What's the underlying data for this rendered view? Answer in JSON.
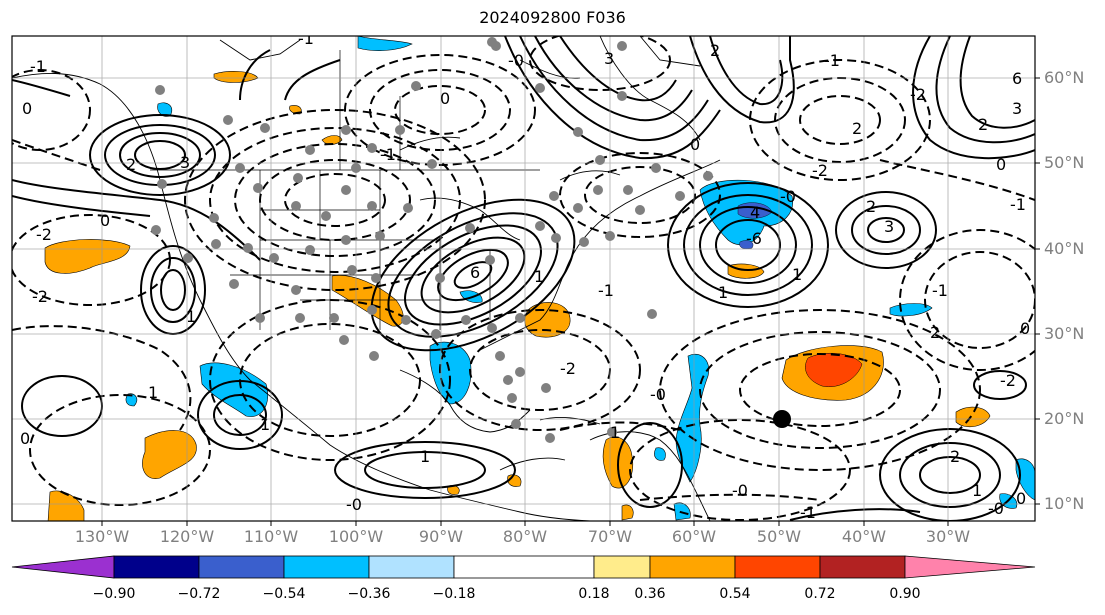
{
  "title": "2024092800 F036",
  "lat_labels": [
    "60°N",
    "50°N",
    "40°N",
    "30°N",
    "20°N",
    "10°N"
  ],
  "lon_labels": [
    "130°W",
    "120°W",
    "110°W",
    "100°W",
    "90°W",
    "80°W",
    "70°W",
    "60°W",
    "50°W",
    "40°W",
    "30°W"
  ],
  "colorbar": {
    "colors": [
      "#9b30d0",
      "#00008b",
      "#3a5fcd",
      "#00bfff",
      "#b0e2ff",
      "#ffffff",
      "#ffec8b",
      "#ffa500",
      "#ff4500",
      "#b22222",
      "#ff82ab"
    ],
    "tick_labels": [
      "−0.90",
      "−0.72",
      "−0.54",
      "−0.36",
      "−0.18",
      "0.18",
      "0.36",
      "0.54",
      "0.72",
      "0.90"
    ]
  },
  "contour_labels": [
    "-1",
    "-2",
    "0",
    "1",
    "2",
    "3",
    "4",
    "6",
    "-0",
    "-6"
  ]
}
